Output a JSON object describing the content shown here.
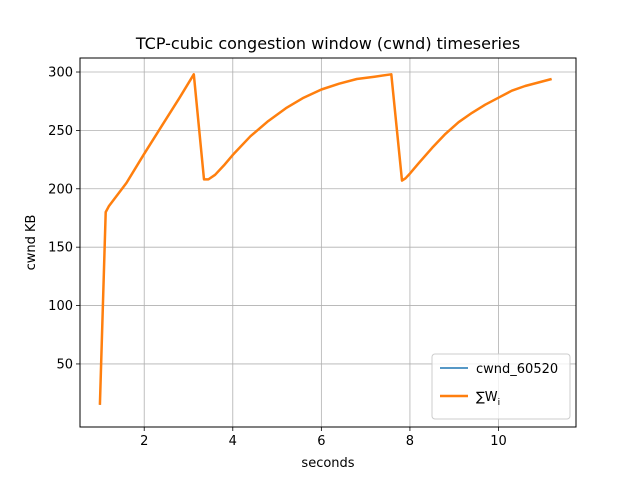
{
  "chart_data": {
    "type": "line",
    "title": "TCP-cubic congestion window (cwnd) timeseries",
    "xlabel": "seconds",
    "ylabel": "cwnd KB",
    "xlim": [
      0.55,
      11.75
    ],
    "ylim": [
      -4,
      312
    ],
    "xticks": [
      2,
      4,
      6,
      8,
      10
    ],
    "yticks": [
      50,
      100,
      150,
      200,
      250,
      300
    ],
    "grid": true,
    "legend_position": "lower-right",
    "series": [
      {
        "name": "cwnd_60520",
        "color": "#1f77b4",
        "x": [
          1.0,
          1.13,
          1.2,
          1.6,
          2.0,
          2.4,
          2.8,
          3.12,
          3.35,
          3.45,
          3.6,
          3.8,
          4.0,
          4.4,
          4.8,
          5.2,
          5.6,
          6.0,
          6.4,
          6.8,
          7.2,
          7.58,
          7.82,
          7.9,
          8.0,
          8.2,
          8.5,
          8.8,
          9.1,
          9.4,
          9.7,
          10.0,
          10.3,
          10.6,
          10.9,
          11.2
        ],
        "y": [
          15,
          180,
          185,
          205,
          230,
          254,
          278,
          298,
          208,
          208,
          212,
          220,
          229,
          245,
          258,
          269,
          278,
          285,
          290,
          294,
          296,
          298,
          207,
          209,
          213,
          222,
          235,
          247,
          257,
          265,
          272,
          278,
          284,
          288,
          291,
          294
        ]
      },
      {
        "name": "∑W",
        "name_subscript": "i",
        "color": "#ff7f0e",
        "x": [
          1.0,
          1.13,
          1.2,
          1.6,
          2.0,
          2.4,
          2.8,
          3.12,
          3.35,
          3.45,
          3.6,
          3.8,
          4.0,
          4.4,
          4.8,
          5.2,
          5.6,
          6.0,
          6.4,
          6.8,
          7.2,
          7.58,
          7.82,
          7.9,
          8.0,
          8.2,
          8.5,
          8.8,
          9.1,
          9.4,
          9.7,
          10.0,
          10.3,
          10.6,
          10.9,
          11.2
        ],
        "y": [
          15,
          180,
          185,
          205,
          230,
          254,
          278,
          298,
          208,
          208,
          212,
          220,
          229,
          245,
          258,
          269,
          278,
          285,
          290,
          294,
          296,
          298,
          207,
          209,
          213,
          222,
          235,
          247,
          257,
          265,
          272,
          278,
          284,
          288,
          291,
          294
        ]
      }
    ]
  }
}
